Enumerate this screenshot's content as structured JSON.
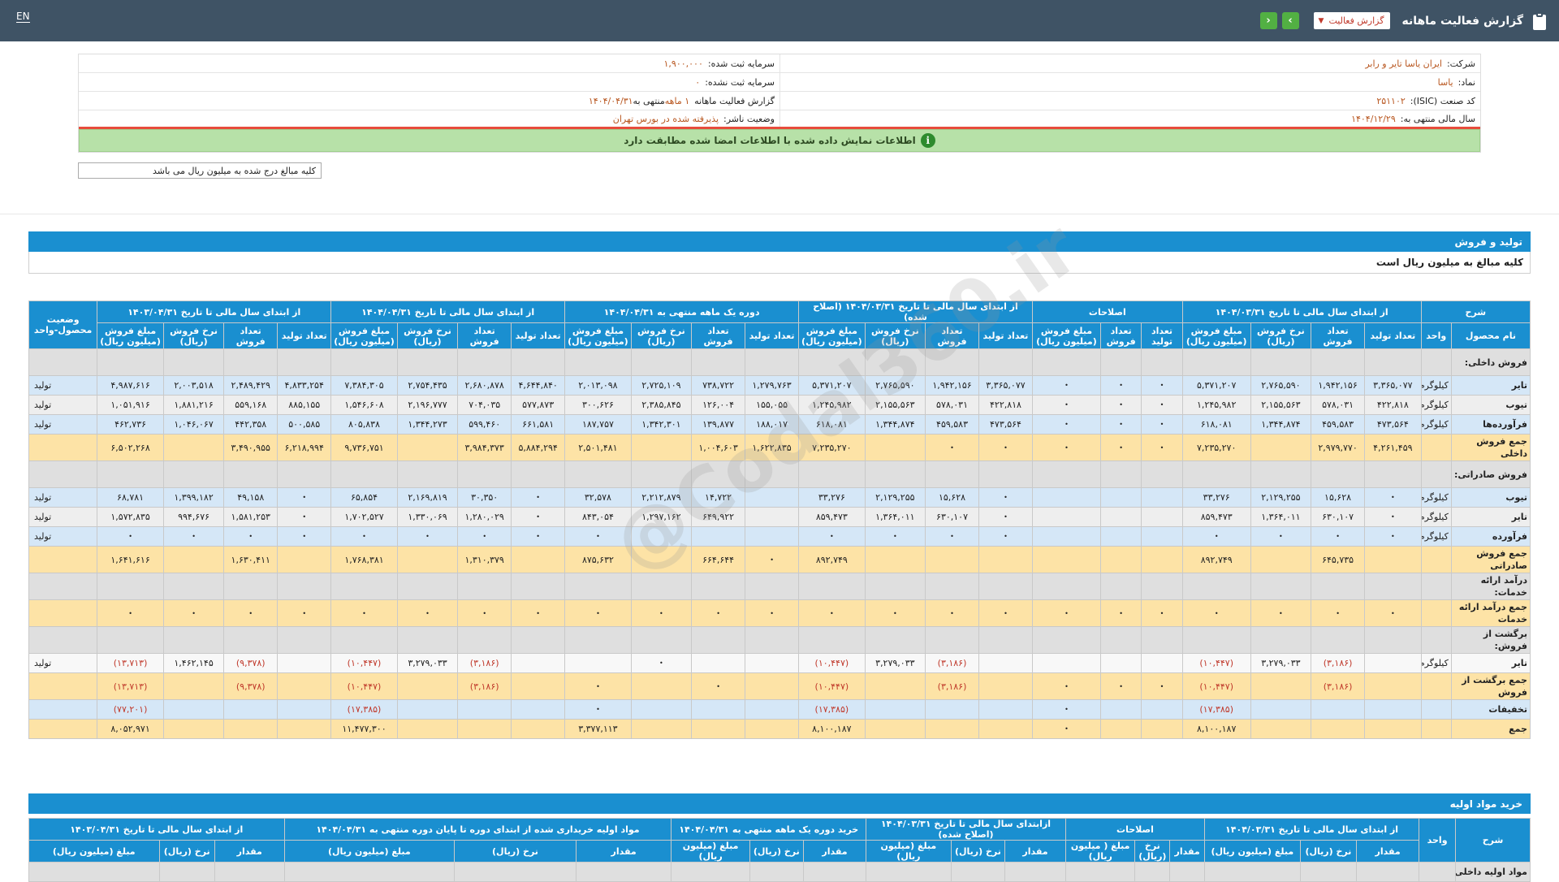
{
  "topbar": {
    "title": "گزارش فعالیت ماهانه",
    "report_type": "گزارش فعالیت",
    "lang": "EN"
  },
  "info": {
    "company_label": "شرکت:",
    "company": "ایران یاسا تایر و رابر",
    "symbol_label": "نماد:",
    "symbol": "یاسا",
    "isic_label": "کد صنعت (ISIC):",
    "isic": "۲۵۱۱۰۲",
    "fiscal_label": "سال مالی منتهی به:",
    "fiscal": "۱۴۰۴/۱۲/۲۹",
    "capital_label": "سرمایه ثبت شده:",
    "capital": "۱,۹۰۰,۰۰۰",
    "unreg_label": "سرمایه ثبت نشده:",
    "unreg": "۰",
    "report_label": "گزارش فعالیت ماهانه",
    "report_value": "۱ ماهه",
    "report_suffix": "منتهی به",
    "report_date": "۱۴۰۴/۰۴/۳۱",
    "status_label": "وضعیت ناشر:",
    "status": "پذیرفته شده در بورس تهران",
    "notice": "اطلاعات نمایش داده شده با اطلاعات امضا شده مطابقت دارد",
    "all_amounts": "کلیه مبالغ درج شده به میلیون ریال می باشد"
  },
  "section1": {
    "title": "تولید و فروش",
    "subtitle": "کلیه مبالغ به میلیون ریال است"
  },
  "section2": {
    "title": "خرید مواد اولیه"
  },
  "watermark": "@Codal360.ir",
  "table_head": {
    "groups": [
      "شرح",
      "از ابتدای سال مالی تا تاریخ ۱۴۰۴/۰۳/۳۱",
      "اصلاحات",
      "از ابتدای سال مالی تا تاریخ ۱۴۰۴/۰۳/۳۱ (اصلاح شده)",
      "دوره یک ماهه منتهی به ۱۴۰۴/۰۴/۳۱",
      "از ابتدای سال مالی تا تاریخ ۱۴۰۴/۰۴/۳۱",
      "از ابتدای سال مالی تا تاریخ ۱۴۰۳/۰۴/۳۱",
      "وضعیت محصول-واحد"
    ],
    "sub": [
      "نام محصول",
      "واحد",
      "تعداد تولید",
      "تعداد فروش",
      "نرخ فروش (ریال)",
      "مبلغ فروش (میلیون ریال)",
      "تعداد تولید",
      "تعداد فروش",
      "مبلغ فروش (میلیون ریال)",
      "تعداد تولید",
      "تعداد فروش",
      "نرخ فروش (ریال)",
      "مبلغ فروش (میلیون ریال)",
      "تعداد تولید",
      "تعداد فروش",
      "نرخ فروش (ریال)",
      "مبلغ فروش (میلیون ریال)",
      "تعداد تولید",
      "تعداد فروش",
      "نرخ فروش (ریال)",
      "مبلغ فروش (میلیون ریال)",
      "تعداد تولید",
      "تعداد فروش",
      "نرخ فروش (ریال)",
      "مبلغ فروش (میلیون ریال)"
    ]
  },
  "rows": [
    {
      "t": "gray",
      "c": [
        "فروش داخلی:",
        "",
        "",
        "",
        "",
        "",
        "",
        "",
        "",
        "",
        "",
        "",
        "",
        "",
        "",
        "",
        "",
        "",
        "",
        "",
        "",
        "",
        "",
        "",
        "",
        ""
      ]
    },
    {
      "t": "blue",
      "c": [
        "تایر",
        "کیلوگرم",
        "۳,۳۶۵,۰۷۷",
        "۱,۹۴۲,۱۵۶",
        "۲,۷۶۵,۵۹۰",
        "۵,۳۷۱,۲۰۷",
        "•",
        "•",
        "•",
        "۳,۳۶۵,۰۷۷",
        "۱,۹۴۲,۱۵۶",
        "۲,۷۶۵,۵۹۰",
        "۵,۳۷۱,۲۰۷",
        "۱,۲۷۹,۷۶۳",
        "۷۳۸,۷۲۲",
        "۲,۷۲۵,۱۰۹",
        "۲,۰۱۳,۰۹۸",
        "۴,۶۴۴,۸۴۰",
        "۲,۶۸۰,۸۷۸",
        "۲,۷۵۴,۴۳۵",
        "۷,۳۸۴,۳۰۵",
        "۴,۸۳۳,۲۵۴",
        "۲,۴۸۹,۴۲۹",
        "۲,۰۰۳,۵۱۸",
        "۴,۹۸۷,۶۱۶",
        "تولید"
      ]
    },
    {
      "t": "light",
      "c": [
        "تیوب",
        "کیلوگرم",
        "۴۲۲,۸۱۸",
        "۵۷۸,۰۳۱",
        "۲,۱۵۵,۵۶۳",
        "۱,۲۴۵,۹۸۲",
        "•",
        "•",
        "•",
        "۴۲۲,۸۱۸",
        "۵۷۸,۰۳۱",
        "۲,۱۵۵,۵۶۳",
        "۱,۲۴۵,۹۸۲",
        "۱۵۵,۰۵۵",
        "۱۲۶,۰۰۴",
        "۲,۳۸۵,۸۴۵",
        "۳۰۰,۶۲۶",
        "۵۷۷,۸۷۳",
        "۷۰۴,۰۳۵",
        "۲,۱۹۶,۷۷۷",
        "۱,۵۴۶,۶۰۸",
        "۸۸۵,۱۵۵",
        "۵۵۹,۱۶۸",
        "۱,۸۸۱,۲۱۶",
        "۱,۰۵۱,۹۱۶",
        "تولید"
      ]
    },
    {
      "t": "blue",
      "c": [
        "فرآورده‌ها",
        "کیلوگرم",
        "۴۷۳,۵۶۴",
        "۴۵۹,۵۸۳",
        "۱,۳۴۴,۸۷۴",
        "۶۱۸,۰۸۱",
        "•",
        "•",
        "•",
        "۴۷۳,۵۶۴",
        "۴۵۹,۵۸۳",
        "۱,۳۴۴,۸۷۴",
        "۶۱۸,۰۸۱",
        "۱۸۸,۰۱۷",
        "۱۳۹,۸۷۷",
        "۱,۳۴۲,۳۰۱",
        "۱۸۷,۷۵۷",
        "۶۶۱,۵۸۱",
        "۵۹۹,۴۶۰",
        "۱,۳۴۴,۲۷۳",
        "۸۰۵,۸۳۸",
        "۵۰۰,۵۸۵",
        "۴۴۲,۳۵۸",
        "۱,۰۴۶,۰۶۷",
        "۴۶۲,۷۳۶",
        "تولید"
      ]
    },
    {
      "t": "sum",
      "c": [
        "جمع فروش داخلی",
        "",
        "۴,۲۶۱,۴۵۹",
        "۲,۹۷۹,۷۷۰",
        "",
        "۷,۲۳۵,۲۷۰",
        "•",
        "•",
        "•",
        "•",
        "•",
        "",
        "۷,۲۳۵,۲۷۰",
        "۱,۶۲۲,۸۳۵",
        "۱,۰۰۴,۶۰۳",
        "",
        "۲,۵۰۱,۴۸۱",
        "۵,۸۸۴,۲۹۴",
        "۳,۹۸۴,۳۷۳",
        "",
        "۹,۷۳۶,۷۵۱",
        "۶,۲۱۸,۹۹۴",
        "۳,۴۹۰,۹۵۵",
        "",
        "۶,۵۰۲,۲۶۸",
        ""
      ]
    },
    {
      "t": "gray",
      "c": [
        "فروش صادراتی:",
        "",
        "",
        "",
        "",
        "",
        "",
        "",
        "",
        "",
        "",
        "",
        "",
        "",
        "",
        "",
        "",
        "",
        "",
        "",
        "",
        "",
        "",
        "",
        "",
        ""
      ]
    },
    {
      "t": "blue",
      "c": [
        "تیوب",
        "کیلوگرم",
        "•",
        "۱۵,۶۲۸",
        "۲,۱۲۹,۲۵۵",
        "۳۳,۲۷۶",
        "",
        "",
        "",
        "•",
        "۱۵,۶۲۸",
        "۲,۱۲۹,۲۵۵",
        "۳۳,۲۷۶",
        "",
        "۱۴,۷۲۲",
        "۲,۲۱۲,۸۷۹",
        "۳۲,۵۷۸",
        "•",
        "۳۰,۳۵۰",
        "۲,۱۶۹,۸۱۹",
        "۶۵,۸۵۴",
        "•",
        "۴۹,۱۵۸",
        "۱,۳۹۹,۱۸۲",
        "۶۸,۷۸۱",
        "تولید"
      ]
    },
    {
      "t": "light",
      "c": [
        "تایر",
        "کیلوگرم",
        "•",
        "۶۳۰,۱۰۷",
        "۱,۳۶۴,۰۱۱",
        "۸۵۹,۴۷۳",
        "",
        "",
        "",
        "•",
        "۶۳۰,۱۰۷",
        "۱,۳۶۴,۰۱۱",
        "۸۵۹,۴۷۳",
        "",
        "۶۴۹,۹۲۲",
        "۱,۲۹۷,۱۶۲",
        "۸۴۳,۰۵۴",
        "•",
        "۱,۲۸۰,۰۲۹",
        "۱,۳۳۰,۰۶۹",
        "۱,۷۰۲,۵۲۷",
        "•",
        "۱,۵۸۱,۲۵۳",
        "۹۹۴,۶۷۶",
        "۱,۵۷۲,۸۳۵",
        "تولید"
      ]
    },
    {
      "t": "blue",
      "c": [
        "فرآورده",
        "کیلوگرم",
        "•",
        "•",
        "•",
        "•",
        "",
        "",
        "",
        "•",
        "•",
        "•",
        "•",
        "",
        "",
        "",
        "•",
        "•",
        "•",
        "•",
        "•",
        "•",
        "•",
        "•",
        "•",
        "تولید"
      ]
    },
    {
      "t": "sum",
      "c": [
        "جمع فروش صادراتی",
        "",
        "",
        "۶۴۵,۷۳۵",
        "",
        "۸۹۲,۷۴۹",
        "",
        "",
        "",
        "",
        "",
        "",
        "۸۹۲,۷۴۹",
        "•",
        "۶۶۴,۶۴۴",
        "",
        "۸۷۵,۶۳۲",
        "",
        "۱,۳۱۰,۳۷۹",
        "",
        "۱,۷۶۸,۳۸۱",
        "",
        "۱,۶۳۰,۴۱۱",
        "",
        "۱,۶۴۱,۶۱۶",
        ""
      ]
    },
    {
      "t": "gray",
      "c": [
        "درآمد ارائه خدمات:",
        "",
        "",
        "",
        "",
        "",
        "",
        "",
        "",
        "",
        "",
        "",
        "",
        "",
        "",
        "",
        "",
        "",
        "",
        "",
        "",
        "",
        "",
        "",
        "",
        ""
      ]
    },
    {
      "t": "sum",
      "c": [
        "جمع درآمد ارائه خدمات",
        "",
        "•",
        "•",
        "•",
        "•",
        "•",
        "•",
        "•",
        "•",
        "•",
        "•",
        "•",
        "•",
        "•",
        "•",
        "•",
        "•",
        "•",
        "•",
        "•",
        "•",
        "•",
        "•",
        "•",
        ""
      ]
    },
    {
      "t": "gray",
      "c": [
        "برگشت از فروش:",
        "",
        "",
        "",
        "",
        "",
        "",
        "",
        "",
        "",
        "",
        "",
        "",
        "",
        "",
        "",
        "",
        "",
        "",
        "",
        "",
        "",
        "",
        "",
        "",
        ""
      ]
    },
    {
      "t": "white",
      "c": [
        "تایر",
        "کیلوگرم",
        "",
        "(۳,۱۸۶)",
        "۳,۲۷۹,۰۳۳",
        "(۱۰,۴۴۷)",
        "",
        "",
        "",
        "",
        "(۳,۱۸۶)",
        "۳,۲۷۹,۰۳۳",
        "(۱۰,۴۴۷)",
        "",
        "",
        "•",
        "",
        "",
        "(۳,۱۸۶)",
        "۳,۲۷۹,۰۳۳",
        "(۱۰,۴۴۷)",
        "",
        "(۹,۳۷۸)",
        "۱,۴۶۲,۱۴۵",
        "(۱۳,۷۱۳)",
        "تولید"
      ]
    },
    {
      "t": "sum",
      "c": [
        "جمع برگشت از فروش",
        "",
        "",
        "(۳,۱۸۶)",
        "",
        "(۱۰,۴۴۷)",
        "•",
        "•",
        "•",
        "",
        "(۳,۱۸۶)",
        "",
        "(۱۰,۴۴۷)",
        "",
        "•",
        "",
        "•",
        "",
        "(۳,۱۸۶)",
        "",
        "(۱۰,۴۴۷)",
        "",
        "(۹,۳۷۸)",
        "",
        "(۱۳,۷۱۳)",
        ""
      ]
    },
    {
      "t": "blue",
      "c": [
        "تخفیفات",
        "",
        "",
        "",
        "",
        "(۱۷,۳۸۵)",
        "",
        "",
        "•",
        "",
        "",
        "",
        "(۱۷,۳۸۵)",
        "",
        "",
        "",
        "•",
        "",
        "",
        "",
        "(۱۷,۳۸۵)",
        "",
        "",
        "",
        "(۷۷,۲۰۱)",
        ""
      ]
    },
    {
      "t": "sum",
      "c": [
        "جمع",
        "",
        "",
        "",
        "",
        "۸,۱۰۰,۱۸۷",
        "",
        "",
        "•",
        "",
        "",
        "",
        "۸,۱۰۰,۱۸۷",
        "",
        "",
        "",
        "۳,۳۷۷,۱۱۳",
        "",
        "",
        "",
        "۱۱,۴۷۷,۳۰۰",
        "",
        "",
        "",
        "۸,۰۵۲,۹۷۱",
        ""
      ]
    }
  ],
  "table2_head": {
    "groups": [
      "شرح",
      "واحد",
      "از ابتدای سال مالی تا تاریخ ۱۴۰۴/۰۳/۳۱",
      "اصلاحات",
      "ازابتدای سال مالی تا تاریخ ۱۴۰۴/۰۳/۳۱ (اصلاح شده)",
      "خرید دوره یک ماهه منتهی به ۱۴۰۴/۰۴/۳۱",
      "مواد اولیه خریداری شده از ابتدای دوره تا پایان دوره منتهی به ۱۴۰۴/۰۴/۳۱",
      "از ابتدای سال مالی تا تاریخ ۱۴۰۳/۰۴/۳۱"
    ],
    "sub": [
      "مقدار",
      "نرخ (ریال)",
      "مبلغ (میلیون ریال)",
      "مقدار",
      "نرخ (ریال)",
      "مبلغ ( میلیون ریال)",
      "مقدار",
      "نرخ (ریال)",
      "مبلغ (میلیون ریال)",
      "مقدار",
      "نرخ (ریال)",
      "مبلغ (میلیون ریال)",
      "مقدار",
      "نرخ (ریال)",
      "مبلغ (میلیون ریال)",
      "مقدار",
      "نرخ (ریال)",
      "مبلغ (میلیون ریال)"
    ],
    "first_row": "مواد اولیه داخلی"
  }
}
